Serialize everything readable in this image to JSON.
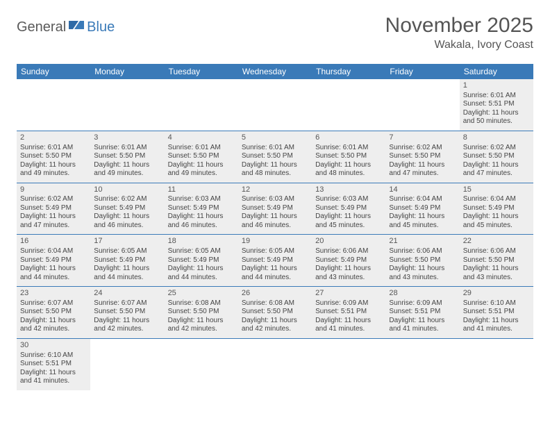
{
  "logo": {
    "text1": "General",
    "text2": "Blue"
  },
  "title": "November 2025",
  "location": "Wakala, Ivory Coast",
  "colors": {
    "header_bg": "#3a7ab8",
    "header_text": "#ffffff",
    "cell_bg": "#eeeeee",
    "text": "#444444",
    "border": "#3a7ab8"
  },
  "dayHeaders": [
    "Sunday",
    "Monday",
    "Tuesday",
    "Wednesday",
    "Thursday",
    "Friday",
    "Saturday"
  ],
  "weeks": [
    [
      null,
      null,
      null,
      null,
      null,
      null,
      {
        "n": "1",
        "sr": "Sunrise: 6:01 AM",
        "ss": "Sunset: 5:51 PM",
        "dl": "Daylight: 11 hours and 50 minutes."
      }
    ],
    [
      {
        "n": "2",
        "sr": "Sunrise: 6:01 AM",
        "ss": "Sunset: 5:50 PM",
        "dl": "Daylight: 11 hours and 49 minutes."
      },
      {
        "n": "3",
        "sr": "Sunrise: 6:01 AM",
        "ss": "Sunset: 5:50 PM",
        "dl": "Daylight: 11 hours and 49 minutes."
      },
      {
        "n": "4",
        "sr": "Sunrise: 6:01 AM",
        "ss": "Sunset: 5:50 PM",
        "dl": "Daylight: 11 hours and 49 minutes."
      },
      {
        "n": "5",
        "sr": "Sunrise: 6:01 AM",
        "ss": "Sunset: 5:50 PM",
        "dl": "Daylight: 11 hours and 48 minutes."
      },
      {
        "n": "6",
        "sr": "Sunrise: 6:01 AM",
        "ss": "Sunset: 5:50 PM",
        "dl": "Daylight: 11 hours and 48 minutes."
      },
      {
        "n": "7",
        "sr": "Sunrise: 6:02 AM",
        "ss": "Sunset: 5:50 PM",
        "dl": "Daylight: 11 hours and 47 minutes."
      },
      {
        "n": "8",
        "sr": "Sunrise: 6:02 AM",
        "ss": "Sunset: 5:50 PM",
        "dl": "Daylight: 11 hours and 47 minutes."
      }
    ],
    [
      {
        "n": "9",
        "sr": "Sunrise: 6:02 AM",
        "ss": "Sunset: 5:49 PM",
        "dl": "Daylight: 11 hours and 47 minutes."
      },
      {
        "n": "10",
        "sr": "Sunrise: 6:02 AM",
        "ss": "Sunset: 5:49 PM",
        "dl": "Daylight: 11 hours and 46 minutes."
      },
      {
        "n": "11",
        "sr": "Sunrise: 6:03 AM",
        "ss": "Sunset: 5:49 PM",
        "dl": "Daylight: 11 hours and 46 minutes."
      },
      {
        "n": "12",
        "sr": "Sunrise: 6:03 AM",
        "ss": "Sunset: 5:49 PM",
        "dl": "Daylight: 11 hours and 46 minutes."
      },
      {
        "n": "13",
        "sr": "Sunrise: 6:03 AM",
        "ss": "Sunset: 5:49 PM",
        "dl": "Daylight: 11 hours and 45 minutes."
      },
      {
        "n": "14",
        "sr": "Sunrise: 6:04 AM",
        "ss": "Sunset: 5:49 PM",
        "dl": "Daylight: 11 hours and 45 minutes."
      },
      {
        "n": "15",
        "sr": "Sunrise: 6:04 AM",
        "ss": "Sunset: 5:49 PM",
        "dl": "Daylight: 11 hours and 45 minutes."
      }
    ],
    [
      {
        "n": "16",
        "sr": "Sunrise: 6:04 AM",
        "ss": "Sunset: 5:49 PM",
        "dl": "Daylight: 11 hours and 44 minutes."
      },
      {
        "n": "17",
        "sr": "Sunrise: 6:05 AM",
        "ss": "Sunset: 5:49 PM",
        "dl": "Daylight: 11 hours and 44 minutes."
      },
      {
        "n": "18",
        "sr": "Sunrise: 6:05 AM",
        "ss": "Sunset: 5:49 PM",
        "dl": "Daylight: 11 hours and 44 minutes."
      },
      {
        "n": "19",
        "sr": "Sunrise: 6:05 AM",
        "ss": "Sunset: 5:49 PM",
        "dl": "Daylight: 11 hours and 44 minutes."
      },
      {
        "n": "20",
        "sr": "Sunrise: 6:06 AM",
        "ss": "Sunset: 5:49 PM",
        "dl": "Daylight: 11 hours and 43 minutes."
      },
      {
        "n": "21",
        "sr": "Sunrise: 6:06 AM",
        "ss": "Sunset: 5:50 PM",
        "dl": "Daylight: 11 hours and 43 minutes."
      },
      {
        "n": "22",
        "sr": "Sunrise: 6:06 AM",
        "ss": "Sunset: 5:50 PM",
        "dl": "Daylight: 11 hours and 43 minutes."
      }
    ],
    [
      {
        "n": "23",
        "sr": "Sunrise: 6:07 AM",
        "ss": "Sunset: 5:50 PM",
        "dl": "Daylight: 11 hours and 42 minutes."
      },
      {
        "n": "24",
        "sr": "Sunrise: 6:07 AM",
        "ss": "Sunset: 5:50 PM",
        "dl": "Daylight: 11 hours and 42 minutes."
      },
      {
        "n": "25",
        "sr": "Sunrise: 6:08 AM",
        "ss": "Sunset: 5:50 PM",
        "dl": "Daylight: 11 hours and 42 minutes."
      },
      {
        "n": "26",
        "sr": "Sunrise: 6:08 AM",
        "ss": "Sunset: 5:50 PM",
        "dl": "Daylight: 11 hours and 42 minutes."
      },
      {
        "n": "27",
        "sr": "Sunrise: 6:09 AM",
        "ss": "Sunset: 5:51 PM",
        "dl": "Daylight: 11 hours and 41 minutes."
      },
      {
        "n": "28",
        "sr": "Sunrise: 6:09 AM",
        "ss": "Sunset: 5:51 PM",
        "dl": "Daylight: 11 hours and 41 minutes."
      },
      {
        "n": "29",
        "sr": "Sunrise: 6:10 AM",
        "ss": "Sunset: 5:51 PM",
        "dl": "Daylight: 11 hours and 41 minutes."
      }
    ],
    [
      {
        "n": "30",
        "sr": "Sunrise: 6:10 AM",
        "ss": "Sunset: 5:51 PM",
        "dl": "Daylight: 11 hours and 41 minutes."
      },
      null,
      null,
      null,
      null,
      null,
      null
    ]
  ]
}
